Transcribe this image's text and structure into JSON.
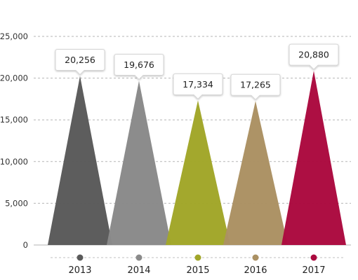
{
  "chart_data": {
    "type": "bar",
    "style": "triangle-peaks",
    "categories": [
      "2013",
      "2014",
      "2015",
      "2016",
      "2017"
    ],
    "values": [
      20256,
      19676,
      17334,
      17265,
      20880
    ],
    "value_labels": [
      "20,256",
      "19,676",
      "17,334",
      "17,265",
      "20,880"
    ],
    "colors": [
      "#5a5a5a",
      "#8a8a8a",
      "#a1a629",
      "#ab9163",
      "#ab0a3f"
    ],
    "yticks": [
      {
        "value": 0,
        "label": "0"
      },
      {
        "value": 5000,
        "label": "5,000"
      },
      {
        "value": 10000,
        "label": "10,000"
      },
      {
        "value": 15000,
        "label": "15,000"
      },
      {
        "value": 20000,
        "label": "20,000"
      },
      {
        "value": 25000,
        "label": "25,000"
      }
    ],
    "ylim": [
      0,
      25000
    ],
    "grid": true,
    "title": "",
    "xlabel": "",
    "ylabel": ""
  }
}
